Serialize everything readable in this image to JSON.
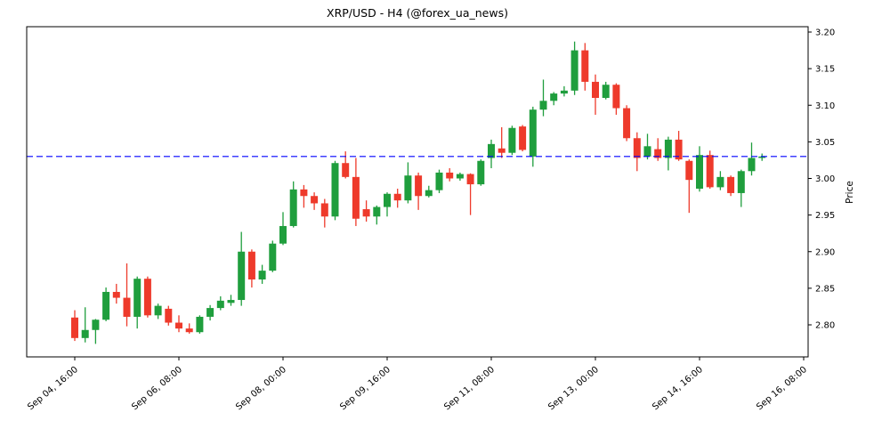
{
  "chart_data": {
    "type": "candlestick",
    "title": "XRP/USD - H4 (@forex_ua_news)",
    "symbol": "XRP/USD",
    "timeframe": "H4",
    "source": "@forex_ua_news",
    "ylabel": "Price",
    "background": "#ffffff",
    "axis_color": "#000000",
    "up_color": "#1f9e3d",
    "down_color": "#ee3a2b",
    "grid": false,
    "legend": null,
    "ylim": [
      2.756,
      3.207
    ],
    "yticks": [
      2.8,
      2.85,
      2.9,
      2.95,
      3.0,
      3.05,
      3.1,
      3.15,
      3.2
    ],
    "ytick_labels": [
      "2.80",
      "2.85",
      "2.90",
      "2.95",
      "3.00",
      "3.05",
      "3.10",
      "3.15",
      "3.20"
    ],
    "xtick_labels": [
      "Sep 04, 16:00",
      "Sep 06, 08:00",
      "Sep 08, 00:00",
      "Sep 09, 16:00",
      "Sep 11, 08:00",
      "Sep 13, 00:00",
      "Sep 14, 16:00",
      "Sep 16, 08:00"
    ],
    "xtick_candle_indices": [
      0,
      10,
      20,
      30,
      40,
      50,
      60,
      70
    ],
    "hline": {
      "value": 3.03,
      "color": "#0000ff",
      "style": "dashed"
    },
    "candles": [
      {
        "time": "Sep 04 16:00",
        "o": 2.81,
        "h": 2.82,
        "l": 2.778,
        "c": 2.782
      },
      {
        "time": "Sep 04 20:00",
        "o": 2.782,
        "h": 2.824,
        "l": 2.776,
        "c": 2.793
      },
      {
        "time": "Sep 05 00:00",
        "o": 2.793,
        "h": 2.808,
        "l": 2.774,
        "c": 2.807
      },
      {
        "time": "Sep 05 04:00",
        "o": 2.807,
        "h": 2.851,
        "l": 2.805,
        "c": 2.845
      },
      {
        "time": "Sep 05 08:00",
        "o": 2.845,
        "h": 2.856,
        "l": 2.829,
        "c": 2.837
      },
      {
        "time": "Sep 05 12:00",
        "o": 2.837,
        "h": 2.884,
        "l": 2.798,
        "c": 2.811
      },
      {
        "time": "Sep 05 16:00",
        "o": 2.811,
        "h": 2.866,
        "l": 2.795,
        "c": 2.863
      },
      {
        "time": "Sep 05 20:00",
        "o": 2.863,
        "h": 2.866,
        "l": 2.81,
        "c": 2.813
      },
      {
        "time": "Sep 06 00:00",
        "o": 2.813,
        "h": 2.829,
        "l": 2.808,
        "c": 2.826
      },
      {
        "time": "Sep 06 04:00",
        "o": 2.822,
        "h": 2.826,
        "l": 2.799,
        "c": 2.803
      },
      {
        "time": "Sep 06 08:00",
        "o": 2.803,
        "h": 2.813,
        "l": 2.79,
        "c": 2.795
      },
      {
        "time": "Sep 06 12:00",
        "o": 2.795,
        "h": 2.802,
        "l": 2.788,
        "c": 2.79
      },
      {
        "time": "Sep 06 16:00",
        "o": 2.79,
        "h": 2.813,
        "l": 2.788,
        "c": 2.811
      },
      {
        "time": "Sep 06 20:00",
        "o": 2.811,
        "h": 2.827,
        "l": 2.806,
        "c": 2.823
      },
      {
        "time": "Sep 07 00:00",
        "o": 2.823,
        "h": 2.839,
        "l": 2.82,
        "c": 2.833
      },
      {
        "time": "Sep 07 04:00",
        "o": 2.83,
        "h": 2.841,
        "l": 2.826,
        "c": 2.834
      },
      {
        "time": "Sep 07 08:00",
        "o": 2.834,
        "h": 2.927,
        "l": 2.826,
        "c": 2.9
      },
      {
        "time": "Sep 07 12:00",
        "o": 2.9,
        "h": 2.903,
        "l": 2.851,
        "c": 2.862
      },
      {
        "time": "Sep 07 16:00",
        "o": 2.862,
        "h": 2.882,
        "l": 2.856,
        "c": 2.874
      },
      {
        "time": "Sep 07 20:00",
        "o": 2.874,
        "h": 2.915,
        "l": 2.872,
        "c": 2.911
      },
      {
        "time": "Sep 08 00:00",
        "o": 2.911,
        "h": 2.954,
        "l": 2.909,
        "c": 2.935
      },
      {
        "time": "Sep 08 04:00",
        "o": 2.935,
        "h": 2.996,
        "l": 2.933,
        "c": 2.985
      },
      {
        "time": "Sep 08 08:00",
        "o": 2.985,
        "h": 2.991,
        "l": 2.96,
        "c": 2.976
      },
      {
        "time": "Sep 08 12:00",
        "o": 2.976,
        "h": 2.981,
        "l": 2.957,
        "c": 2.966
      },
      {
        "time": "Sep 08 16:00",
        "o": 2.966,
        "h": 2.972,
        "l": 2.933,
        "c": 2.948
      },
      {
        "time": "Sep 08 20:00",
        "o": 2.948,
        "h": 3.024,
        "l": 2.943,
        "c": 3.021
      },
      {
        "time": "Sep 09 00:00",
        "o": 3.021,
        "h": 3.037,
        "l": 3.0,
        "c": 3.002
      },
      {
        "time": "Sep 09 04:00",
        "o": 3.002,
        "h": 3.028,
        "l": 2.935,
        "c": 2.945
      },
      {
        "time": "Sep 09 08:00",
        "o": 2.958,
        "h": 2.97,
        "l": 2.941,
        "c": 2.948
      },
      {
        "time": "Sep 09 12:00",
        "o": 2.948,
        "h": 2.963,
        "l": 2.937,
        "c": 2.961
      },
      {
        "time": "Sep 09 16:00",
        "o": 2.961,
        "h": 2.981,
        "l": 2.948,
        "c": 2.979
      },
      {
        "time": "Sep 09 20:00",
        "o": 2.979,
        "h": 2.986,
        "l": 2.96,
        "c": 2.97
      },
      {
        "time": "Sep 10 00:00",
        "o": 2.97,
        "h": 3.022,
        "l": 2.966,
        "c": 3.004
      },
      {
        "time": "Sep 10 04:00",
        "o": 3.004,
        "h": 3.008,
        "l": 2.957,
        "c": 2.976
      },
      {
        "time": "Sep 10 08:00",
        "o": 2.976,
        "h": 2.99,
        "l": 2.974,
        "c": 2.984
      },
      {
        "time": "Sep 10 12:00",
        "o": 2.984,
        "h": 3.012,
        "l": 2.98,
        "c": 3.008
      },
      {
        "time": "Sep 10 16:00",
        "o": 3.008,
        "h": 3.014,
        "l": 2.996,
        "c": 3.0
      },
      {
        "time": "Sep 10 20:00",
        "o": 3.0,
        "h": 3.008,
        "l": 2.997,
        "c": 3.006
      },
      {
        "time": "Sep 11 00:00",
        "o": 3.006,
        "h": 3.007,
        "l": 2.95,
        "c": 2.992
      },
      {
        "time": "Sep 11 04:00",
        "o": 2.992,
        "h": 3.026,
        "l": 2.99,
        "c": 3.024
      },
      {
        "time": "Sep 11 08:00",
        "o": 3.028,
        "h": 3.053,
        "l": 3.014,
        "c": 3.047
      },
      {
        "time": "Sep 11 12:00",
        "o": 3.041,
        "h": 3.07,
        "l": 3.028,
        "c": 3.035
      },
      {
        "time": "Sep 11 16:00",
        "o": 3.035,
        "h": 3.072,
        "l": 3.032,
        "c": 3.069
      },
      {
        "time": "Sep 11 20:00",
        "o": 3.071,
        "h": 3.073,
        "l": 3.037,
        "c": 3.039
      },
      {
        "time": "Sep 12 00:00",
        "o": 3.03,
        "h": 3.098,
        "l": 3.016,
        "c": 3.094
      },
      {
        "time": "Sep 12 04:00",
        "o": 3.094,
        "h": 3.135,
        "l": 3.085,
        "c": 3.106
      },
      {
        "time": "Sep 12 08:00",
        "o": 3.106,
        "h": 3.118,
        "l": 3.1,
        "c": 3.116
      },
      {
        "time": "Sep 12 12:00",
        "o": 3.116,
        "h": 3.126,
        "l": 3.112,
        "c": 3.12
      },
      {
        "time": "Sep 12 16:00",
        "o": 3.12,
        "h": 3.187,
        "l": 3.114,
        "c": 3.175
      },
      {
        "time": "Sep 12 20:00",
        "o": 3.175,
        "h": 3.185,
        "l": 3.12,
        "c": 3.132
      },
      {
        "time": "Sep 13 00:00",
        "o": 3.132,
        "h": 3.142,
        "l": 3.087,
        "c": 3.11
      },
      {
        "time": "Sep 13 04:00",
        "o": 3.11,
        "h": 3.132,
        "l": 3.108,
        "c": 3.128
      },
      {
        "time": "Sep 13 08:00",
        "o": 3.128,
        "h": 3.13,
        "l": 3.087,
        "c": 3.096
      },
      {
        "time": "Sep 13 12:00",
        "o": 3.096,
        "h": 3.1,
        "l": 3.051,
        "c": 3.055
      },
      {
        "time": "Sep 13 16:00",
        "o": 3.055,
        "h": 3.063,
        "l": 3.01,
        "c": 3.028
      },
      {
        "time": "Sep 13 20:00",
        "o": 3.03,
        "h": 3.061,
        "l": 3.026,
        "c": 3.044
      },
      {
        "time": "Sep 14 00:00",
        "o": 3.04,
        "h": 3.055,
        "l": 3.024,
        "c": 3.028
      },
      {
        "time": "Sep 14 04:00",
        "o": 3.028,
        "h": 3.057,
        "l": 3.011,
        "c": 3.053
      },
      {
        "time": "Sep 14 08:00",
        "o": 3.053,
        "h": 3.065,
        "l": 3.024,
        "c": 3.026
      },
      {
        "time": "Sep 14 12:00",
        "o": 3.024,
        "h": 3.026,
        "l": 2.953,
        "c": 2.998
      },
      {
        "time": "Sep 14 16:00",
        "o": 2.986,
        "h": 3.044,
        "l": 2.982,
        "c": 3.032
      },
      {
        "time": "Sep 14 20:00",
        "o": 3.032,
        "h": 3.038,
        "l": 2.986,
        "c": 2.988
      },
      {
        "time": "Sep 15 00:00",
        "o": 2.988,
        "h": 3.01,
        "l": 2.984,
        "c": 3.002
      },
      {
        "time": "Sep 15 04:00",
        "o": 3.002,
        "h": 3.004,
        "l": 2.976,
        "c": 2.98
      },
      {
        "time": "Sep 15 08:00",
        "o": 2.98,
        "h": 3.012,
        "l": 2.961,
        "c": 3.01
      },
      {
        "time": "Sep 15 12:00",
        "o": 3.01,
        "h": 3.049,
        "l": 3.004,
        "c": 3.028
      },
      {
        "time": "Sep 15 16:00",
        "o": 3.028,
        "h": 3.034,
        "l": 3.024,
        "c": 3.03
      }
    ]
  }
}
